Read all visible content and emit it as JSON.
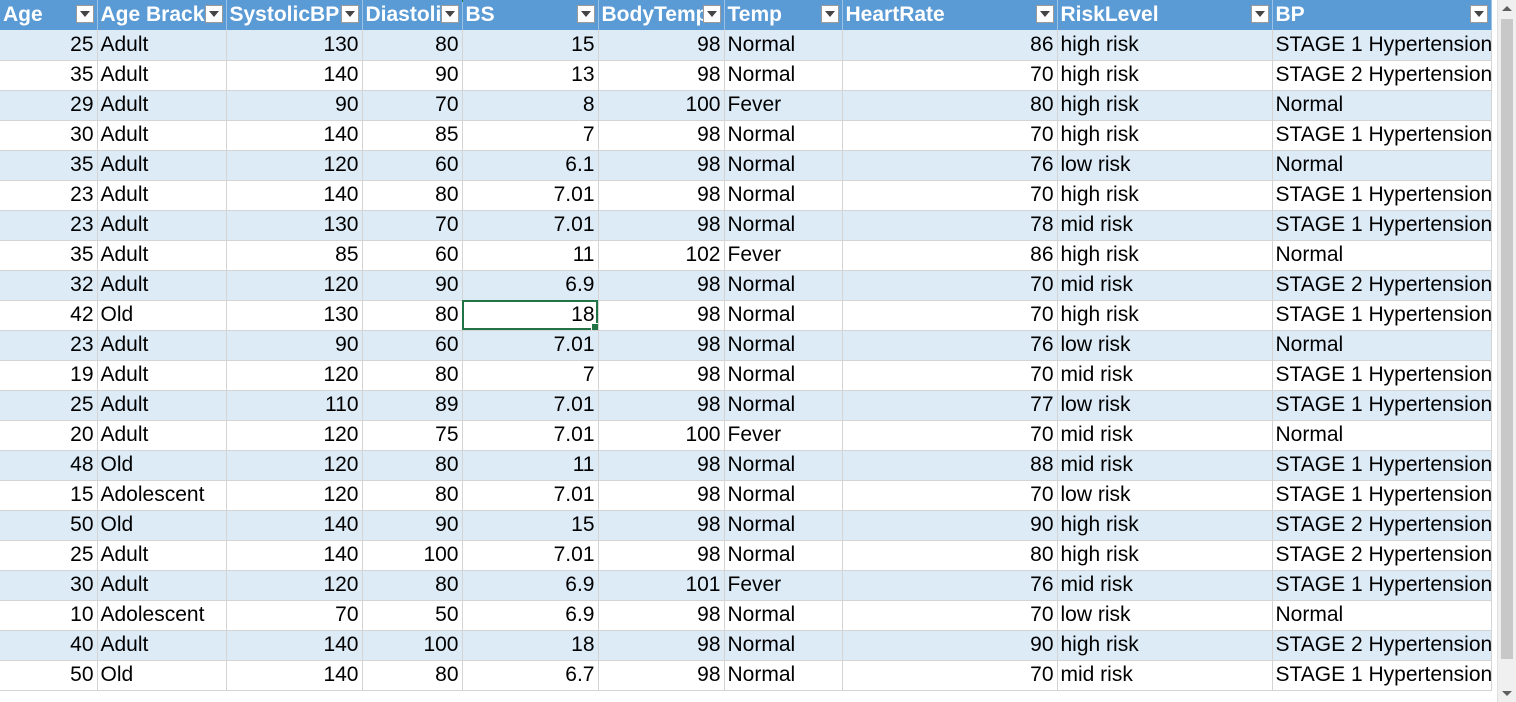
{
  "columns": [
    {
      "key": "age",
      "label": "Age"
    },
    {
      "key": "age_bracket",
      "label": "Age Bracke"
    },
    {
      "key": "systolic",
      "label": "SystolicBP"
    },
    {
      "key": "diastolic",
      "label": "Diastoli"
    },
    {
      "key": "bs",
      "label": "BS"
    },
    {
      "key": "bodytemp",
      "label": "BodyTemp"
    },
    {
      "key": "temp",
      "label": "Temp"
    },
    {
      "key": "heartrate",
      "label": "HeartRate"
    },
    {
      "key": "risk",
      "label": "RiskLevel"
    },
    {
      "key": "bp",
      "label": "BP"
    }
  ],
  "rows": [
    [
      "25",
      "Adult",
      "130",
      "80",
      "15",
      "98",
      "Normal",
      "86",
      "high risk",
      "STAGE 1 Hypertension"
    ],
    [
      "35",
      "Adult",
      "140",
      "90",
      "13",
      "98",
      "Normal",
      "70",
      "high risk",
      "STAGE 2 Hypertension"
    ],
    [
      "29",
      "Adult",
      "90",
      "70",
      "8",
      "100",
      "Fever",
      "80",
      "high risk",
      "Normal"
    ],
    [
      "30",
      "Adult",
      "140",
      "85",
      "7",
      "98",
      "Normal",
      "70",
      "high risk",
      "STAGE 1 Hypertension"
    ],
    [
      "35",
      "Adult",
      "120",
      "60",
      "6.1",
      "98",
      "Normal",
      "76",
      "low risk",
      "Normal"
    ],
    [
      "23",
      "Adult",
      "140",
      "80",
      "7.01",
      "98",
      "Normal",
      "70",
      "high risk",
      "STAGE 1 Hypertension"
    ],
    [
      "23",
      "Adult",
      "130",
      "70",
      "7.01",
      "98",
      "Normal",
      "78",
      "mid risk",
      "STAGE 1 Hypertension"
    ],
    [
      "35",
      "Adult",
      "85",
      "60",
      "11",
      "102",
      "Fever",
      "86",
      "high risk",
      "Normal"
    ],
    [
      "32",
      "Adult",
      "120",
      "90",
      "6.9",
      "98",
      "Normal",
      "70",
      "mid risk",
      "STAGE 2 Hypertension"
    ],
    [
      "42",
      "Old",
      "130",
      "80",
      "18",
      "98",
      "Normal",
      "70",
      "high risk",
      "STAGE 1 Hypertension"
    ],
    [
      "23",
      "Adult",
      "90",
      "60",
      "7.01",
      "98",
      "Normal",
      "76",
      "low risk",
      "Normal"
    ],
    [
      "19",
      "Adult",
      "120",
      "80",
      "7",
      "98",
      "Normal",
      "70",
      "mid risk",
      "STAGE 1 Hypertension"
    ],
    [
      "25",
      "Adult",
      "110",
      "89",
      "7.01",
      "98",
      "Normal",
      "77",
      "low risk",
      "STAGE 1 Hypertension"
    ],
    [
      "20",
      "Adult",
      "120",
      "75",
      "7.01",
      "100",
      "Fever",
      "70",
      "mid risk",
      "Normal"
    ],
    [
      "48",
      "Old",
      "120",
      "80",
      "11",
      "98",
      "Normal",
      "88",
      "mid risk",
      "STAGE 1 Hypertension"
    ],
    [
      "15",
      "Adolescent",
      "120",
      "80",
      "7.01",
      "98",
      "Normal",
      "70",
      "low risk",
      "STAGE 1 Hypertension"
    ],
    [
      "50",
      "Old",
      "140",
      "90",
      "15",
      "98",
      "Normal",
      "90",
      "high risk",
      "STAGE 2 Hypertension"
    ],
    [
      "25",
      "Adult",
      "140",
      "100",
      "7.01",
      "98",
      "Normal",
      "80",
      "high risk",
      "STAGE 2 Hypertension"
    ],
    [
      "30",
      "Adult",
      "120",
      "80",
      "6.9",
      "101",
      "Fever",
      "76",
      "mid risk",
      "STAGE 1 Hypertension"
    ],
    [
      "10",
      "Adolescent",
      "70",
      "50",
      "6.9",
      "98",
      "Normal",
      "70",
      "low risk",
      "Normal"
    ],
    [
      "40",
      "Adult",
      "140",
      "100",
      "18",
      "98",
      "Normal",
      "90",
      "high risk",
      "STAGE 2 Hypertension"
    ],
    [
      "50",
      "Old",
      "140",
      "80",
      "6.7",
      "98",
      "Normal",
      "70",
      "mid risk",
      "STAGE 1 Hypertension"
    ]
  ],
  "selected_cell": {
    "row": 9,
    "col": 4
  },
  "colors": {
    "header": "#5b9bd5",
    "band": "#ddebf7",
    "selection": "#217346"
  }
}
